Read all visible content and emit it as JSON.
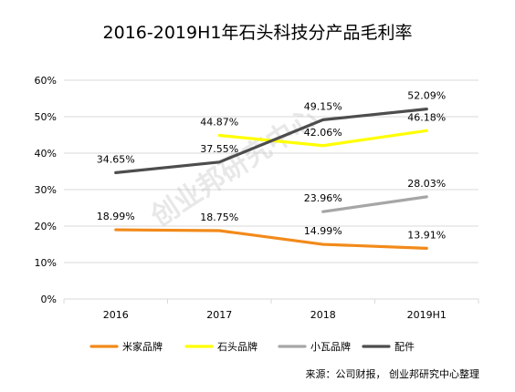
{
  "chart_data": {
    "type": "line",
    "title": "2016-2019H1年石头科技分产品毛利率",
    "categories": [
      "2016",
      "2017",
      "2018",
      "2019H1"
    ],
    "ylim": [
      0,
      60
    ],
    "yticks": [
      0,
      10,
      20,
      30,
      40,
      50,
      60
    ],
    "ytick_labels": [
      "0%",
      "10%",
      "20%",
      "30%",
      "40%",
      "50%",
      "60%"
    ],
    "grid": "horizontal",
    "legend_position": "bottom",
    "series": [
      {
        "name": "米家品牌",
        "color": "#f28a1a",
        "values": [
          18.99,
          18.75,
          14.99,
          13.91
        ],
        "labels": [
          "18.99%",
          "18.75%",
          "14.99%",
          "13.91%"
        ]
      },
      {
        "name": "石头品牌",
        "color": "#ffff00",
        "values": [
          null,
          44.87,
          42.06,
          46.18
        ],
        "labels": [
          null,
          "44.87%",
          "42.06%",
          "46.18%"
        ]
      },
      {
        "name": "小瓦品牌",
        "color": "#a6a6a6",
        "values": [
          null,
          null,
          23.96,
          28.03
        ],
        "labels": [
          null,
          null,
          "23.96%",
          "28.03%"
        ]
      },
      {
        "name": "配件",
        "color": "#4d4d4d",
        "values": [
          34.65,
          37.55,
          49.15,
          52.09
        ],
        "labels": [
          "34.65%",
          "37.55%",
          "49.15%",
          "52.09%"
        ]
      }
    ],
    "source": "来源：公司财报， 创业邦研究中心整理",
    "watermark": "创业邦研究中心"
  }
}
